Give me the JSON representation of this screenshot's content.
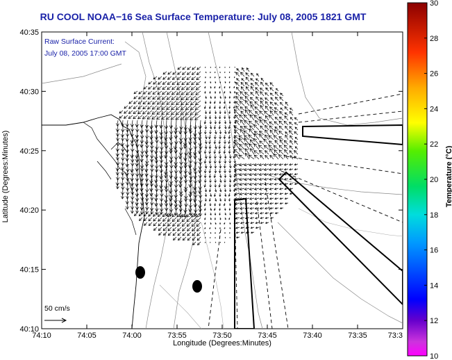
{
  "chart_data": {
    "type": "map",
    "title": "RU COOL  NOAA−16  Sea Surface Temperature:  July 08, 2005 1821 GMT",
    "xlabel": "Longitude (Degrees:Minutes)",
    "ylabel": "Latitude (Degrees:Minutes)",
    "x_ticks": [
      "74:10",
      "74:05",
      "74:00",
      "73:55",
      "73:50",
      "73:45",
      "73:40",
      "73:35",
      "73:3"
    ],
    "y_ticks": [
      "40:35",
      "40:30",
      "40:25",
      "40:20",
      "40:15",
      "40:10"
    ],
    "colorbar": {
      "label": "Temperature (°C)",
      "ticks": [
        "30",
        "28",
        "26",
        "24",
        "22",
        "20",
        "18",
        "16",
        "14",
        "12",
        "10"
      ],
      "range": [
        10,
        30
      ]
    },
    "annotation": {
      "line1": "Raw Surface Current:",
      "line2": "July 08, 2005 17:00 GMT"
    },
    "scale_label": "50 cm/s"
  }
}
